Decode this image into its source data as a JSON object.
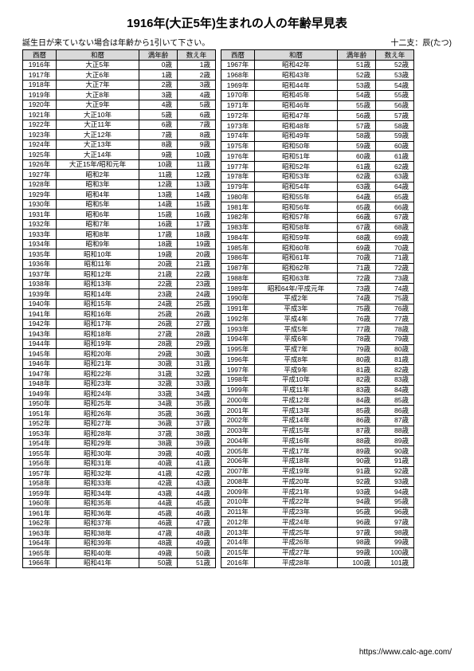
{
  "title": "1916年(大正5年)生まれの人の年齢早見表",
  "note": "誕生日が来ていない場合は年齢から1引いて下さい。",
  "zodiac": "十二支：辰(たつ)",
  "footer": "https://www.calc-age.com/",
  "headers": {
    "seireki": "西暦",
    "wareki": "和暦",
    "man": "満年齢",
    "kazoe": "数え年"
  },
  "rows_left": [
    {
      "y": "1916年",
      "w": "大正5年",
      "m": "0歳",
      "k": "1歳"
    },
    {
      "y": "1917年",
      "w": "大正6年",
      "m": "1歳",
      "k": "2歳"
    },
    {
      "y": "1918年",
      "w": "大正7年",
      "m": "2歳",
      "k": "3歳"
    },
    {
      "y": "1919年",
      "w": "大正8年",
      "m": "3歳",
      "k": "4歳"
    },
    {
      "y": "1920年",
      "w": "大正9年",
      "m": "4歳",
      "k": "5歳"
    },
    {
      "y": "1921年",
      "w": "大正10年",
      "m": "5歳",
      "k": "6歳"
    },
    {
      "y": "1922年",
      "w": "大正11年",
      "m": "6歳",
      "k": "7歳"
    },
    {
      "y": "1923年",
      "w": "大正12年",
      "m": "7歳",
      "k": "8歳"
    },
    {
      "y": "1924年",
      "w": "大正13年",
      "m": "8歳",
      "k": "9歳"
    },
    {
      "y": "1925年",
      "w": "大正14年",
      "m": "9歳",
      "k": "10歳"
    },
    {
      "y": "1926年",
      "w": "大正15年/昭和元年",
      "m": "10歳",
      "k": "11歳"
    },
    {
      "y": "1927年",
      "w": "昭和2年",
      "m": "11歳",
      "k": "12歳"
    },
    {
      "y": "1928年",
      "w": "昭和3年",
      "m": "12歳",
      "k": "13歳"
    },
    {
      "y": "1929年",
      "w": "昭和4年",
      "m": "13歳",
      "k": "14歳"
    },
    {
      "y": "1930年",
      "w": "昭和5年",
      "m": "14歳",
      "k": "15歳"
    },
    {
      "y": "1931年",
      "w": "昭和6年",
      "m": "15歳",
      "k": "16歳"
    },
    {
      "y": "1932年",
      "w": "昭和7年",
      "m": "16歳",
      "k": "17歳"
    },
    {
      "y": "1933年",
      "w": "昭和8年",
      "m": "17歳",
      "k": "18歳"
    },
    {
      "y": "1934年",
      "w": "昭和9年",
      "m": "18歳",
      "k": "19歳"
    },
    {
      "y": "1935年",
      "w": "昭和10年",
      "m": "19歳",
      "k": "20歳"
    },
    {
      "y": "1936年",
      "w": "昭和11年",
      "m": "20歳",
      "k": "21歳"
    },
    {
      "y": "1937年",
      "w": "昭和12年",
      "m": "21歳",
      "k": "22歳"
    },
    {
      "y": "1938年",
      "w": "昭和13年",
      "m": "22歳",
      "k": "23歳"
    },
    {
      "y": "1939年",
      "w": "昭和14年",
      "m": "23歳",
      "k": "24歳"
    },
    {
      "y": "1940年",
      "w": "昭和15年",
      "m": "24歳",
      "k": "25歳"
    },
    {
      "y": "1941年",
      "w": "昭和16年",
      "m": "25歳",
      "k": "26歳"
    },
    {
      "y": "1942年",
      "w": "昭和17年",
      "m": "26歳",
      "k": "27歳"
    },
    {
      "y": "1943年",
      "w": "昭和18年",
      "m": "27歳",
      "k": "28歳"
    },
    {
      "y": "1944年",
      "w": "昭和19年",
      "m": "28歳",
      "k": "29歳"
    },
    {
      "y": "1945年",
      "w": "昭和20年",
      "m": "29歳",
      "k": "30歳"
    },
    {
      "y": "1946年",
      "w": "昭和21年",
      "m": "30歳",
      "k": "31歳"
    },
    {
      "y": "1947年",
      "w": "昭和22年",
      "m": "31歳",
      "k": "32歳"
    },
    {
      "y": "1948年",
      "w": "昭和23年",
      "m": "32歳",
      "k": "33歳"
    },
    {
      "y": "1949年",
      "w": "昭和24年",
      "m": "33歳",
      "k": "34歳"
    },
    {
      "y": "1950年",
      "w": "昭和25年",
      "m": "34歳",
      "k": "35歳"
    },
    {
      "y": "1951年",
      "w": "昭和26年",
      "m": "35歳",
      "k": "36歳"
    },
    {
      "y": "1952年",
      "w": "昭和27年",
      "m": "36歳",
      "k": "37歳"
    },
    {
      "y": "1953年",
      "w": "昭和28年",
      "m": "37歳",
      "k": "38歳"
    },
    {
      "y": "1954年",
      "w": "昭和29年",
      "m": "38歳",
      "k": "39歳"
    },
    {
      "y": "1955年",
      "w": "昭和30年",
      "m": "39歳",
      "k": "40歳"
    },
    {
      "y": "1956年",
      "w": "昭和31年",
      "m": "40歳",
      "k": "41歳"
    },
    {
      "y": "1957年",
      "w": "昭和32年",
      "m": "41歳",
      "k": "42歳"
    },
    {
      "y": "1958年",
      "w": "昭和33年",
      "m": "42歳",
      "k": "43歳"
    },
    {
      "y": "1959年",
      "w": "昭和34年",
      "m": "43歳",
      "k": "44歳"
    },
    {
      "y": "1960年",
      "w": "昭和35年",
      "m": "44歳",
      "k": "45歳"
    },
    {
      "y": "1961年",
      "w": "昭和36年",
      "m": "45歳",
      "k": "46歳"
    },
    {
      "y": "1962年",
      "w": "昭和37年",
      "m": "46歳",
      "k": "47歳"
    },
    {
      "y": "1963年",
      "w": "昭和38年",
      "m": "47歳",
      "k": "48歳"
    },
    {
      "y": "1964年",
      "w": "昭和39年",
      "m": "48歳",
      "k": "49歳"
    },
    {
      "y": "1965年",
      "w": "昭和40年",
      "m": "49歳",
      "k": "50歳"
    },
    {
      "y": "1966年",
      "w": "昭和41年",
      "m": "50歳",
      "k": "51歳"
    }
  ],
  "rows_right": [
    {
      "y": "1967年",
      "w": "昭和42年",
      "m": "51歳",
      "k": "52歳"
    },
    {
      "y": "1968年",
      "w": "昭和43年",
      "m": "52歳",
      "k": "53歳"
    },
    {
      "y": "1969年",
      "w": "昭和44年",
      "m": "53歳",
      "k": "54歳"
    },
    {
      "y": "1970年",
      "w": "昭和45年",
      "m": "54歳",
      "k": "55歳"
    },
    {
      "y": "1971年",
      "w": "昭和46年",
      "m": "55歳",
      "k": "56歳"
    },
    {
      "y": "1972年",
      "w": "昭和47年",
      "m": "56歳",
      "k": "57歳"
    },
    {
      "y": "1973年",
      "w": "昭和48年",
      "m": "57歳",
      "k": "58歳"
    },
    {
      "y": "1974年",
      "w": "昭和49年",
      "m": "58歳",
      "k": "59歳"
    },
    {
      "y": "1975年",
      "w": "昭和50年",
      "m": "59歳",
      "k": "60歳"
    },
    {
      "y": "1976年",
      "w": "昭和51年",
      "m": "60歳",
      "k": "61歳"
    },
    {
      "y": "1977年",
      "w": "昭和52年",
      "m": "61歳",
      "k": "62歳"
    },
    {
      "y": "1978年",
      "w": "昭和53年",
      "m": "62歳",
      "k": "63歳"
    },
    {
      "y": "1979年",
      "w": "昭和54年",
      "m": "63歳",
      "k": "64歳"
    },
    {
      "y": "1980年",
      "w": "昭和55年",
      "m": "64歳",
      "k": "65歳"
    },
    {
      "y": "1981年",
      "w": "昭和56年",
      "m": "65歳",
      "k": "66歳"
    },
    {
      "y": "1982年",
      "w": "昭和57年",
      "m": "66歳",
      "k": "67歳"
    },
    {
      "y": "1983年",
      "w": "昭和58年",
      "m": "67歳",
      "k": "68歳"
    },
    {
      "y": "1984年",
      "w": "昭和59年",
      "m": "68歳",
      "k": "69歳"
    },
    {
      "y": "1985年",
      "w": "昭和60年",
      "m": "69歳",
      "k": "70歳"
    },
    {
      "y": "1986年",
      "w": "昭和61年",
      "m": "70歳",
      "k": "71歳"
    },
    {
      "y": "1987年",
      "w": "昭和62年",
      "m": "71歳",
      "k": "72歳"
    },
    {
      "y": "1988年",
      "w": "昭和63年",
      "m": "72歳",
      "k": "73歳"
    },
    {
      "y": "1989年",
      "w": "昭和64年/平成元年",
      "m": "73歳",
      "k": "74歳"
    },
    {
      "y": "1990年",
      "w": "平成2年",
      "m": "74歳",
      "k": "75歳"
    },
    {
      "y": "1991年",
      "w": "平成3年",
      "m": "75歳",
      "k": "76歳"
    },
    {
      "y": "1992年",
      "w": "平成4年",
      "m": "76歳",
      "k": "77歳"
    },
    {
      "y": "1993年",
      "w": "平成5年",
      "m": "77歳",
      "k": "78歳"
    },
    {
      "y": "1994年",
      "w": "平成6年",
      "m": "78歳",
      "k": "79歳"
    },
    {
      "y": "1995年",
      "w": "平成7年",
      "m": "79歳",
      "k": "80歳"
    },
    {
      "y": "1996年",
      "w": "平成8年",
      "m": "80歳",
      "k": "81歳"
    },
    {
      "y": "1997年",
      "w": "平成9年",
      "m": "81歳",
      "k": "82歳"
    },
    {
      "y": "1998年",
      "w": "平成10年",
      "m": "82歳",
      "k": "83歳"
    },
    {
      "y": "1999年",
      "w": "平成11年",
      "m": "83歳",
      "k": "84歳"
    },
    {
      "y": "2000年",
      "w": "平成12年",
      "m": "84歳",
      "k": "85歳"
    },
    {
      "y": "2001年",
      "w": "平成13年",
      "m": "85歳",
      "k": "86歳"
    },
    {
      "y": "2002年",
      "w": "平成14年",
      "m": "86歳",
      "k": "87歳"
    },
    {
      "y": "2003年",
      "w": "平成15年",
      "m": "87歳",
      "k": "88歳"
    },
    {
      "y": "2004年",
      "w": "平成16年",
      "m": "88歳",
      "k": "89歳"
    },
    {
      "y": "2005年",
      "w": "平成17年",
      "m": "89歳",
      "k": "90歳"
    },
    {
      "y": "2006年",
      "w": "平成18年",
      "m": "90歳",
      "k": "91歳"
    },
    {
      "y": "2007年",
      "w": "平成19年",
      "m": "91歳",
      "k": "92歳"
    },
    {
      "y": "2008年",
      "w": "平成20年",
      "m": "92歳",
      "k": "93歳"
    },
    {
      "y": "2009年",
      "w": "平成21年",
      "m": "93歳",
      "k": "94歳"
    },
    {
      "y": "2010年",
      "w": "平成22年",
      "m": "94歳",
      "k": "95歳"
    },
    {
      "y": "2011年",
      "w": "平成23年",
      "m": "95歳",
      "k": "96歳"
    },
    {
      "y": "2012年",
      "w": "平成24年",
      "m": "96歳",
      "k": "97歳"
    },
    {
      "y": "2013年",
      "w": "平成25年",
      "m": "97歳",
      "k": "98歳"
    },
    {
      "y": "2014年",
      "w": "平成26年",
      "m": "98歳",
      "k": "99歳"
    },
    {
      "y": "2015年",
      "w": "平成27年",
      "m": "99歳",
      "k": "100歳"
    },
    {
      "y": "2016年",
      "w": "平成28年",
      "m": "100歳",
      "k": "101歳"
    }
  ]
}
